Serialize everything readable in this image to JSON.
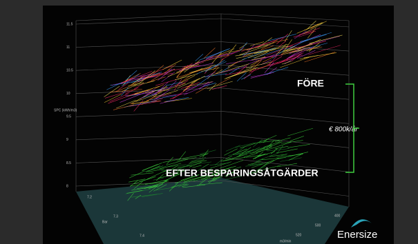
{
  "slide": {
    "y_axis": {
      "label": "SPC (kWh/m3)",
      "ticks": [
        "11.5",
        "11",
        "10.5",
        "10",
        "9.5",
        "9",
        "8.5",
        "8"
      ]
    },
    "bar_axis": {
      "label": "Bar",
      "ticks": [
        "7.2",
        "7.3",
        "7.4"
      ]
    },
    "flow_axis": {
      "label": "m3/min",
      "ticks": [
        "400",
        "500",
        "520"
      ]
    },
    "before_label": "FÖRE",
    "after_label": "EFTER BESPARINGSÅTGÄRDER",
    "saving_label": "€ 800k/år",
    "logo": "Enersize"
  }
}
